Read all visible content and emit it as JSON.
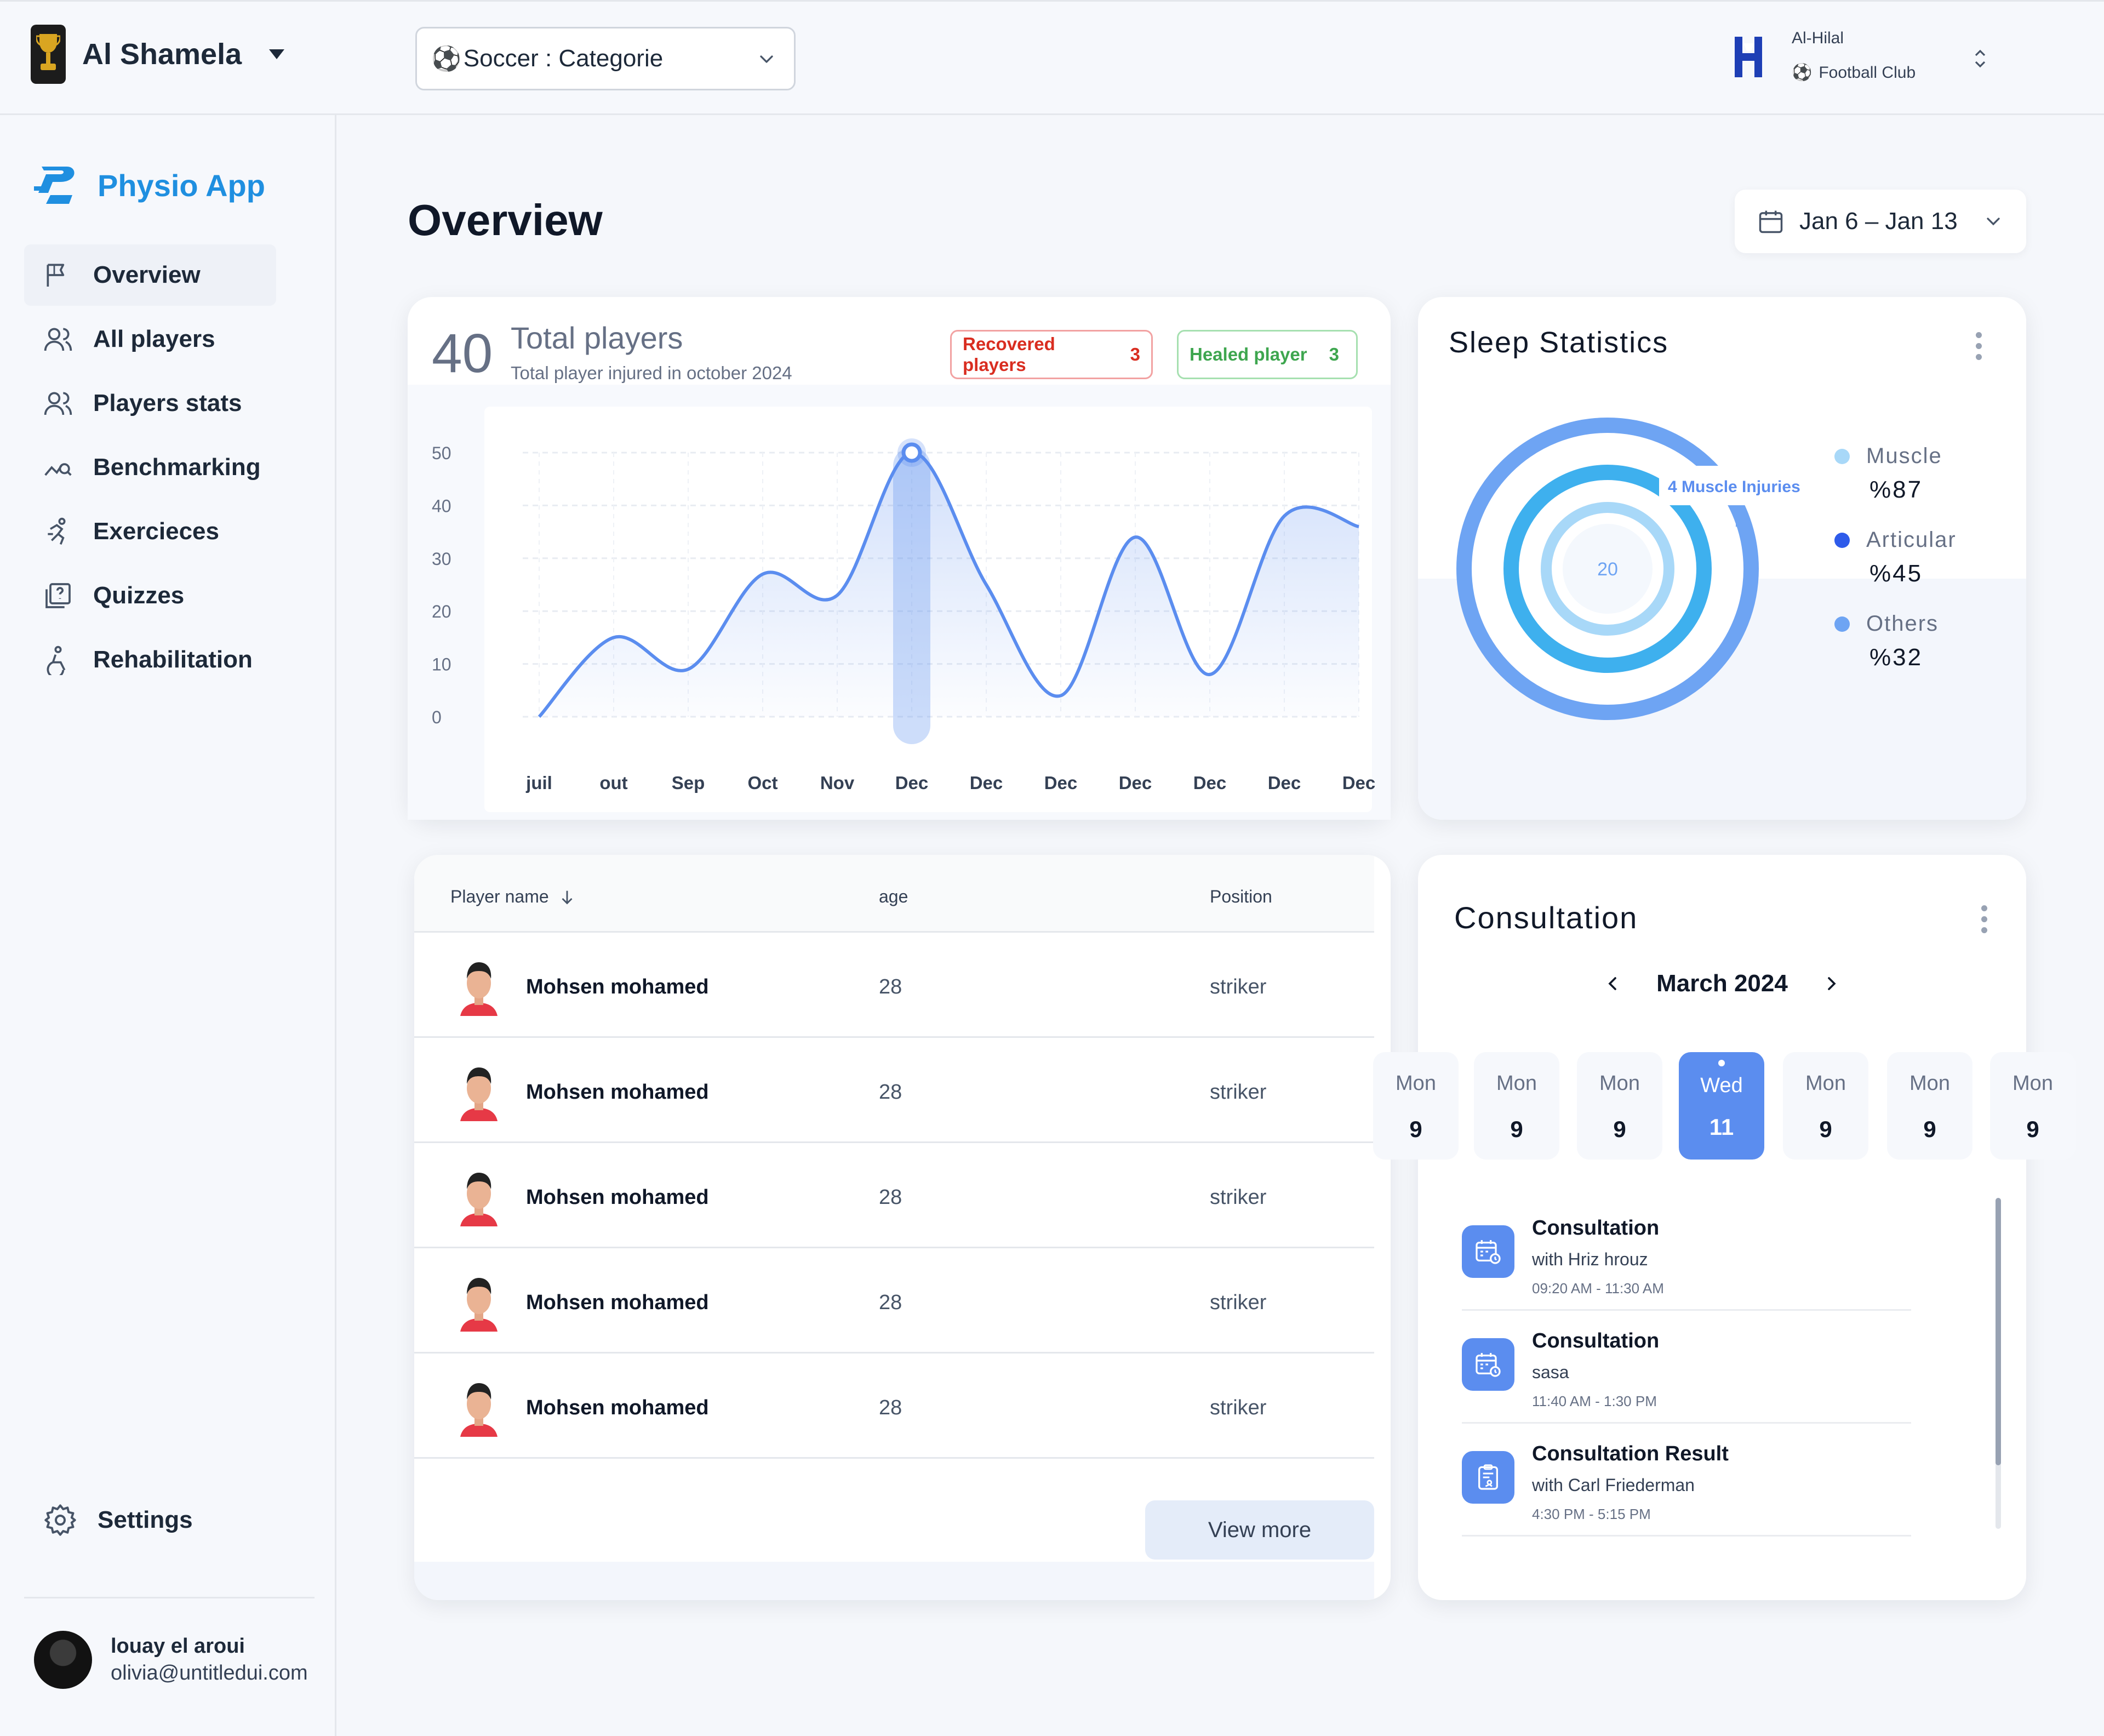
{
  "header": {
    "org_name": "Al Shamela",
    "category_select": "Soccer : Categorie",
    "club_name": "Al-Hilal",
    "club_subtitle": "Football Club"
  },
  "sidebar": {
    "app_name": "Physio App",
    "items": [
      {
        "label": "Overview",
        "icon": "flag-icon",
        "active": true
      },
      {
        "label": "All players",
        "icon": "users-icon"
      },
      {
        "label": "Players stats",
        "icon": "users-icon"
      },
      {
        "label": "Benchmarking",
        "icon": "trend-search-icon"
      },
      {
        "label": "Exercieces",
        "icon": "running-icon"
      },
      {
        "label": "Quizzes",
        "icon": "quiz-icon"
      },
      {
        "label": "Rehabilitation",
        "icon": "rehab-icon"
      }
    ],
    "settings_label": "Settings",
    "user": {
      "name": "louay el aroui",
      "email": "olivia@untitledui.com"
    }
  },
  "main": {
    "title": "Overview",
    "date_range": "Jan 6 – Jan 13"
  },
  "total_players": {
    "count": "40",
    "title": "Total players",
    "subtitle": "Total player injured in october 2024",
    "recovered": {
      "label": "Recovered players",
      "count": "3"
    },
    "healed": {
      "label": "Healed player",
      "count": "3"
    }
  },
  "chart_data": {
    "type": "line",
    "x": [
      "juil",
      "out",
      "Sep",
      "Oct",
      "Nov",
      "Dec",
      "Dec",
      "Dec",
      "Dec",
      "Dec",
      "Dec",
      "Dec"
    ],
    "series": [
      {
        "values": [
          0,
          15,
          9,
          27,
          23,
          50,
          25,
          4,
          34,
          8,
          38,
          36
        ]
      }
    ],
    "yticks": [
      0,
      10,
      20,
      30,
      40,
      50
    ],
    "ylim": [
      0,
      50
    ],
    "highlight_index": 5,
    "grid": true,
    "color": "#5b8def"
  },
  "sleep": {
    "title": "Sleep Statistics",
    "center_value": "20",
    "tooltip": "4 Muscle Injuries",
    "legend": [
      {
        "name": "Muscle",
        "value": "%87",
        "color": "#a8d8f8"
      },
      {
        "name": "Articular",
        "value": "%45",
        "color": "#2e5bea"
      },
      {
        "name": "Others",
        "value": "%32",
        "color": "#6ea4f3"
      }
    ]
  },
  "table": {
    "headers": {
      "name": "Player name",
      "age": "age",
      "position": "Position"
    },
    "rows": [
      {
        "name": "Mohsen mohamed",
        "age": "28",
        "position": "striker"
      },
      {
        "name": "Mohsen mohamed",
        "age": "28",
        "position": "striker"
      },
      {
        "name": "Mohsen mohamed",
        "age": "28",
        "position": "striker"
      },
      {
        "name": "Mohsen mohamed",
        "age": "28",
        "position": "striker"
      },
      {
        "name": "Mohsen mohamed",
        "age": "28",
        "position": "striker"
      }
    ],
    "view_more": "View more"
  },
  "consultation": {
    "title": "Consultation",
    "month": "March 2024",
    "days": [
      {
        "name": "Mon",
        "num": "9"
      },
      {
        "name": "Mon",
        "num": "9"
      },
      {
        "name": "Mon",
        "num": "9"
      },
      {
        "name": "Wed",
        "num": "11",
        "selected": true
      },
      {
        "name": "Mon",
        "num": "9"
      },
      {
        "name": "Mon",
        "num": "9"
      },
      {
        "name": "Mon",
        "num": "9"
      }
    ],
    "appointments": [
      {
        "title": "Consultation",
        "with": "with Hriz hrouz",
        "time": "09:20 AM - 11:30 AM",
        "icon": "calendar-clock-icon"
      },
      {
        "title": "Consultation",
        "with": "sasa",
        "time": "11:40 AM - 1:30 PM",
        "icon": "calendar-clock-icon"
      },
      {
        "title": "Consultation Result",
        "with": "with Carl Friederman",
        "time": "4:30 PM - 5:15 PM",
        "icon": "clipboard-icon"
      }
    ]
  }
}
